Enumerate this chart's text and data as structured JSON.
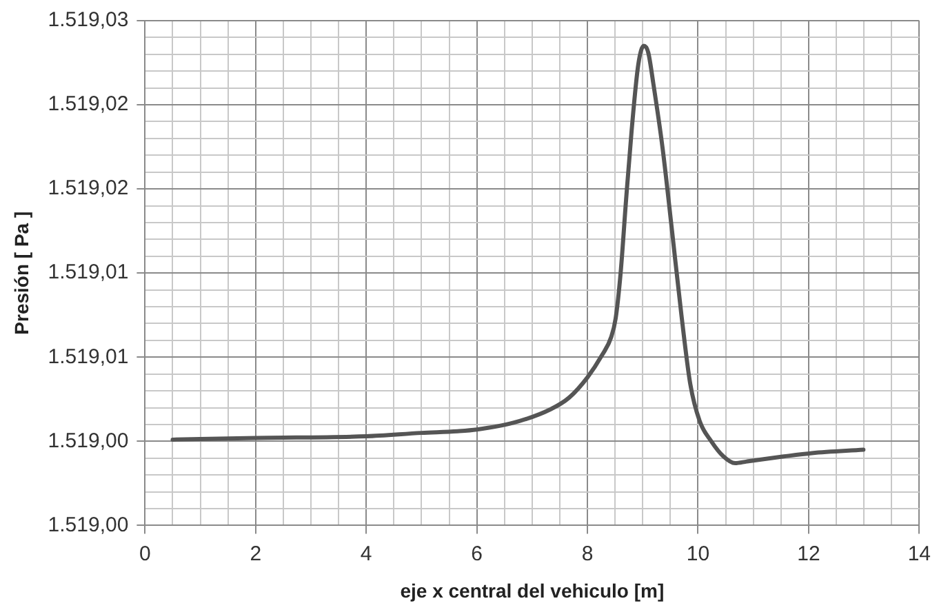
{
  "chart_data": {
    "type": "line",
    "xlabel": "eje x central del vehiculo [m]",
    "ylabel": "Presión [ Pa ]",
    "xlim": [
      0,
      14
    ],
    "xticks": [
      0,
      {
        "value": 0.5,
        "label": null
      },
      {
        "value": 1,
        "label": null
      },
      {
        "value": 1.5,
        "label": null
      },
      2,
      {
        "value": 2.5,
        "label": null
      },
      {
        "value": 3,
        "label": null
      },
      {
        "value": 3.5,
        "label": null
      },
      4,
      {
        "value": 4.5,
        "label": null
      },
      {
        "value": 5,
        "label": null
      },
      {
        "value": 5.5,
        "label": null
      },
      6,
      {
        "value": 6.5,
        "label": null
      },
      {
        "value": 7,
        "label": null
      },
      {
        "value": 7.5,
        "label": null
      },
      8,
      {
        "value": 8.5,
        "label": null
      },
      {
        "value": 9,
        "label": null
      },
      {
        "value": 9.5,
        "label": null
      },
      10,
      {
        "value": 10.5,
        "label": null
      },
      {
        "value": 11,
        "label": null
      },
      {
        "value": 11.5,
        "label": null
      },
      12,
      {
        "value": 12.5,
        "label": null
      },
      {
        "value": 13,
        "label": null
      },
      {
        "value": 13.5,
        "label": null
      },
      14
    ],
    "ylim": [
      1519,
      1519.03
    ],
    "yticks": [
      {
        "value": 1519,
        "label": "1.519,00"
      },
      {
        "value": 1519.001,
        "label": null
      },
      {
        "value": 1519.002,
        "label": null
      },
      {
        "value": 1519.003,
        "label": null
      },
      {
        "value": 1519.004,
        "label": null
      },
      {
        "value": 1519.005,
        "label": "1.519,00"
      },
      {
        "value": 1519.006,
        "label": null
      },
      {
        "value": 1519.007,
        "label": null
      },
      {
        "value": 1519.008,
        "label": null
      },
      {
        "value": 1519.009,
        "label": null
      },
      {
        "value": 1519.01,
        "label": "1.519,01"
      },
      {
        "value": 1519.011,
        "label": null
      },
      {
        "value": 1519.012,
        "label": null
      },
      {
        "value": 1519.013,
        "label": null
      },
      {
        "value": 1519.014,
        "label": null
      },
      {
        "value": 1519.015,
        "label": "1.519,01"
      },
      {
        "value": 1519.016,
        "label": null
      },
      {
        "value": 1519.017,
        "label": null
      },
      {
        "value": 1519.018,
        "label": null
      },
      {
        "value": 1519.019,
        "label": null
      },
      {
        "value": 1519.02,
        "label": "1.519,02"
      },
      {
        "value": 1519.021,
        "label": null
      },
      {
        "value": 1519.022,
        "label": null
      },
      {
        "value": 1519.023,
        "label": null
      },
      {
        "value": 1519.024,
        "label": null
      },
      {
        "value": 1519.025,
        "label": "1.519,02"
      },
      {
        "value": 1519.026,
        "label": null
      },
      {
        "value": 1519.027,
        "label": null
      },
      {
        "value": 1519.028,
        "label": null
      },
      {
        "value": 1519.029,
        "label": null
      },
      {
        "value": 1519.03,
        "label": "1.519,03"
      }
    ],
    "grid": true,
    "legend": false,
    "marker": "none",
    "line_style": "solid",
    "series": [
      {
        "color": "#555555",
        "x": [
          0.5,
          2,
          4,
          5,
          5.65,
          6,
          6.66,
          7.33,
          7.67,
          8,
          8.26,
          8.43,
          8.51,
          8.6,
          8.7,
          8.8,
          8.92,
          9.02,
          9.1,
          9.19,
          9.36,
          9.53,
          9.7,
          9.86,
          10.03,
          10.24,
          10.46,
          10.67,
          10.88,
          11.55,
          12.06,
          12.99
        ],
        "values": [
          1519.0051,
          1519.0052,
          1519.0053,
          1519.0055,
          1519.0056,
          1519.0057,
          1519.0061,
          1519.0069,
          1519.0076,
          1519.0088,
          1519.0101,
          1519.0112,
          1519.0123,
          1519.015,
          1519.0194,
          1519.0235,
          1519.0274,
          1519.0285,
          1519.0281,
          1519.0263,
          1519.0224,
          1519.0175,
          1519.0125,
          1519.0084,
          1519.0062,
          1519.005,
          1519.0041,
          1519.0037,
          1519.0038,
          1519.0041,
          1519.0043,
          1519.0045
        ]
      }
    ]
  }
}
